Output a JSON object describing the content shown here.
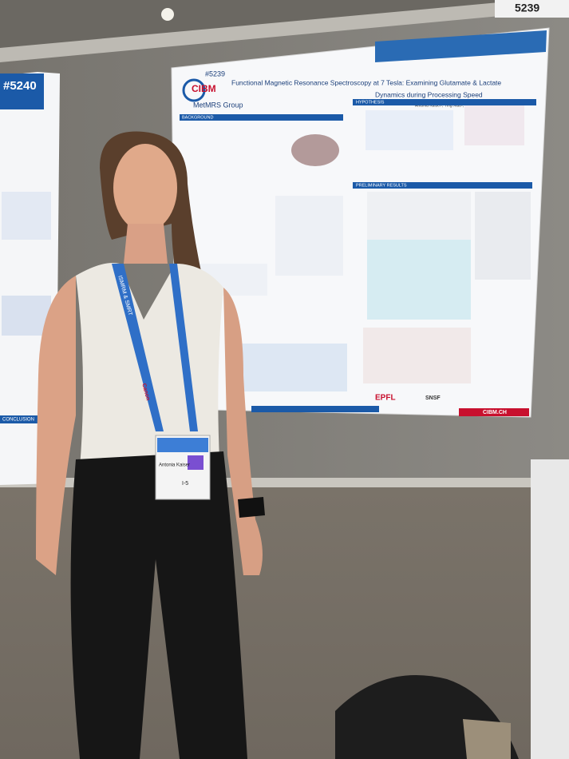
{
  "tag": "5239",
  "left_poster": {
    "number": "#5240",
    "section": "CONCLUSION"
  },
  "poster": {
    "number": "#5239",
    "title_lines": [
      "Functional Magnetic Resonance Spectroscopy at 7 Tesla: Examining Glutamate & Lactate",
      "Dynamics during Processing Speed"
    ],
    "authors": "Antonia Kaiser¹, Ying Xiao¹, Mark Widmaier¹, Lijing Xin¹",
    "logo": "CIBM",
    "group": "MetMRS Group",
    "sections": [
      "BACKGROUND",
      "HYPOTHESIS",
      "PRELIMINARY RESULTS"
    ],
    "footer": [
      "EPFL",
      "SNSF",
      "CIBM.CH"
    ]
  },
  "badge": {
    "name": "Antonia Kaiser",
    "code": "I-5"
  },
  "lanyard": {
    "text": "ISMRM & SMRT",
    "sponsor": "Canon"
  }
}
